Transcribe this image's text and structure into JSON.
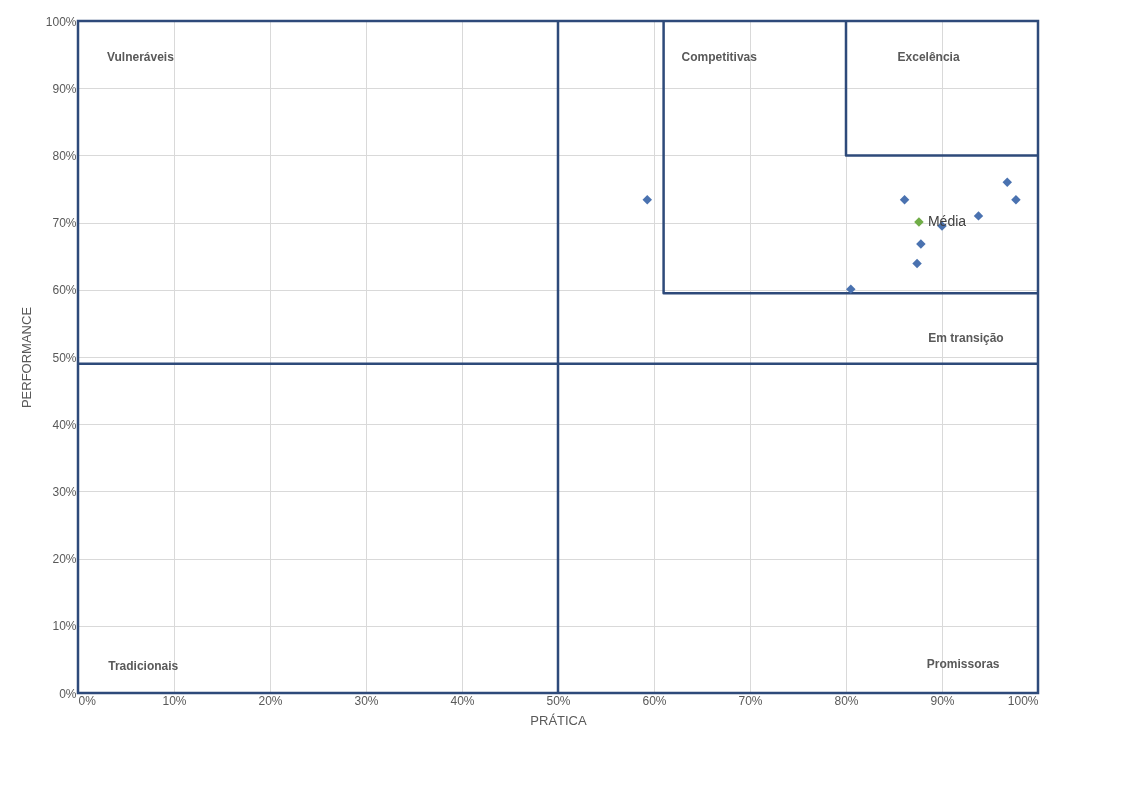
{
  "chart_data": {
    "type": "scatter",
    "xlabel": "PRÁTICA",
    "ylabel": "PERFORMANCE",
    "xlim": [
      0,
      100
    ],
    "ylim": [
      0,
      100
    ],
    "xticks": [
      {
        "value": 0,
        "label": "0%"
      },
      {
        "value": 10,
        "label": "10%"
      },
      {
        "value": 20,
        "label": "20%"
      },
      {
        "value": 30,
        "label": "30%"
      },
      {
        "value": 40,
        "label": "40%"
      },
      {
        "value": 50,
        "label": "50%"
      },
      {
        "value": 60,
        "label": "60%"
      },
      {
        "value": 70,
        "label": "70%"
      },
      {
        "value": 80,
        "label": "80%"
      },
      {
        "value": 90,
        "label": "90%"
      },
      {
        "value": 100,
        "label": "100%"
      }
    ],
    "yticks": [
      {
        "value": 0,
        "label": "0%"
      },
      {
        "value": 10,
        "label": "10%"
      },
      {
        "value": 20,
        "label": "20%"
      },
      {
        "value": 30,
        "label": "30%"
      },
      {
        "value": 40,
        "label": "40%"
      },
      {
        "value": 50,
        "label": "50%"
      },
      {
        "value": 60,
        "label": "60%"
      },
      {
        "value": 70,
        "label": "70%"
      },
      {
        "value": 80,
        "label": "80%"
      },
      {
        "value": 90,
        "label": "90%"
      },
      {
        "value": 100,
        "label": "100%"
      }
    ],
    "grid": true,
    "marker": "diamond",
    "series": [
      {
        "type": "line",
        "color": "#2e4a7a",
        "marker": "none",
        "x": [
          61,
          61,
          100
        ],
        "values": [
          100,
          59.5,
          59.5
        ]
      },
      {
        "type": "line",
        "color": "#2e4a7a",
        "marker": "none",
        "x": [
          80,
          80,
          100
        ],
        "values": [
          100,
          80,
          80
        ]
      },
      {
        "color": "#4a72b0",
        "x": [
          59.3,
          86.1,
          96.8,
          97.7,
          93.8,
          90.0,
          87.8,
          87.4,
          80.5
        ],
        "values": [
          73.4,
          73.4,
          76.0,
          73.4,
          71.0,
          69.5,
          66.8,
          63.9,
          60.1
        ]
      },
      {
        "name": "Média",
        "color": "#70ad47",
        "x": [
          87.6
        ],
        "values": [
          70.1
        ]
      }
    ],
    "ref_lines": [
      {
        "axis": "x",
        "value": 50,
        "color": "#2e4a7a"
      },
      {
        "axis": "y",
        "value": 49,
        "color": "#2e4a7a"
      }
    ],
    "annotations": [
      "Vulneráveis",
      "Competitivas",
      "Excelência",
      "Em transição",
      "Tradicionais",
      "Promissoras"
    ]
  }
}
